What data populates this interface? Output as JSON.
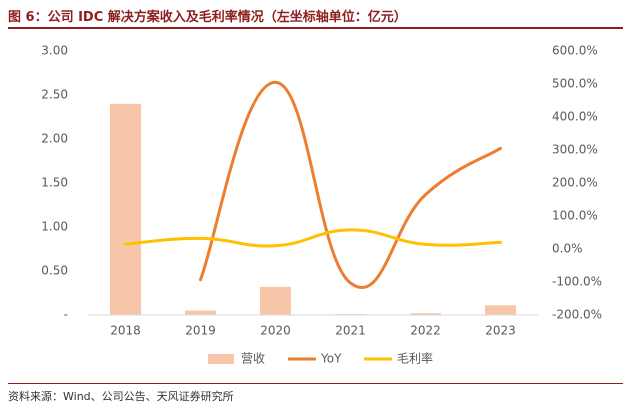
{
  "title": "图 6：公司 IDC 解决方案收入及毛利率情况（左坐标轴单位：亿元）",
  "source": "资料来源：Wind、公司公告、天风证券研究所",
  "chart_data": {
    "type": "bar",
    "categories": [
      "2018",
      "2019",
      "2020",
      "2021",
      "2022",
      "2023"
    ],
    "series": [
      {
        "name": "营收",
        "kind": "bar",
        "axis": "left",
        "color": "#f7c6a8",
        "values": [
          2.4,
          0.05,
          0.32,
          0.01,
          0.02,
          0.11
        ]
      },
      {
        "name": "YoY",
        "kind": "line",
        "axis": "right",
        "color": "#ed7d31",
        "values": [
          null,
          -93.0,
          505.0,
          -103.0,
          165.0,
          305.0
        ]
      },
      {
        "name": "毛利率",
        "kind": "line",
        "axis": "right",
        "color": "#ffc000",
        "values": [
          15.0,
          32.0,
          10.0,
          58.0,
          14.0,
          20.0
        ]
      }
    ],
    "left_axis": {
      "min": 0,
      "max": 3.0,
      "ticks": [
        "-",
        "0.50",
        "1.00",
        "1.50",
        "2.00",
        "2.50",
        "3.00"
      ]
    },
    "right_axis": {
      "min": -200,
      "max": 600,
      "ticks": [
        "-200.0%",
        "-100.0%",
        "0.0%",
        "100.0%",
        "200.0%",
        "300.0%",
        "400.0%",
        "500.0%",
        "600.0%"
      ]
    },
    "legend_position": "bottom",
    "grid": false
  }
}
